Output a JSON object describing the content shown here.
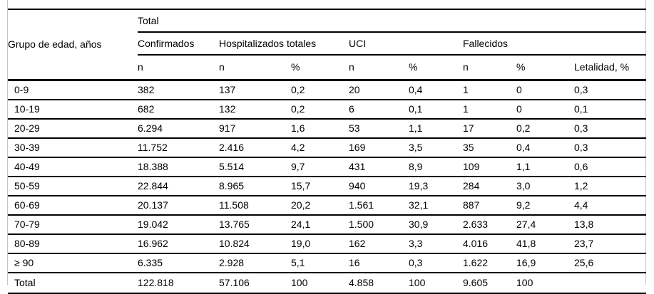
{
  "table": {
    "corner_header": "Grupo de edad, años",
    "span_header": "Total",
    "group_headers": [
      "Confirmados",
      "Hospitalizados totales",
      "UCI",
      "Fallecidos"
    ],
    "sub_headers": [
      "n",
      "n",
      "%",
      "n",
      "%",
      "n",
      "%",
      "Letalidad, %"
    ],
    "rows": [
      {
        "age": "0-9",
        "cells": [
          "382",
          "137",
          "0,2",
          "20",
          "0,4",
          "1",
          "0",
          "0,3"
        ]
      },
      {
        "age": "10-19",
        "cells": [
          "682",
          "132",
          "0,2",
          "6",
          "0,1",
          "1",
          "0",
          "0,1"
        ]
      },
      {
        "age": "20-29",
        "cells": [
          "6.294",
          "917",
          "1,6",
          "53",
          "1,1",
          "17",
          "0,2",
          "0,3"
        ]
      },
      {
        "age": "30-39",
        "cells": [
          "11.752",
          "2.416",
          "4,2",
          "169",
          "3,5",
          "35",
          "0,4",
          "0,3"
        ]
      },
      {
        "age": "40-49",
        "cells": [
          "18.388",
          "5.514",
          "9,7",
          "431",
          "8,9",
          "109",
          "1,1",
          "0,6"
        ]
      },
      {
        "age": "50-59",
        "cells": [
          "22.844",
          "8.965",
          "15,7",
          "940",
          "19,3",
          "284",
          "3,0",
          "1,2"
        ]
      },
      {
        "age": "60-69",
        "cells": [
          "20.137",
          "11.508",
          "20,2",
          "1.561",
          "32,1",
          "887",
          "9,2",
          "4,4"
        ]
      },
      {
        "age": "70-79",
        "cells": [
          "19.042",
          "13.765",
          "24,1",
          "1.500",
          "30,9",
          "2.633",
          "27,4",
          "13,8"
        ]
      },
      {
        "age": "80-89",
        "cells": [
          "16.962",
          "10.824",
          "19,0",
          "162",
          "3,3",
          "4.016",
          "41,8",
          "23,7"
        ]
      },
      {
        "age": "≥ 90",
        "cells": [
          "6.335",
          "2.928",
          "5,1",
          "16",
          "0,3",
          "1.622",
          "16,9",
          "25,6"
        ]
      },
      {
        "age": "Total",
        "cells": [
          "122.818",
          "57.106",
          "100",
          "4.858",
          "100",
          "9.605",
          "100",
          ""
        ]
      }
    ],
    "colors": {
      "rule": "#000000",
      "frame": "#c4c4c4"
    }
  }
}
